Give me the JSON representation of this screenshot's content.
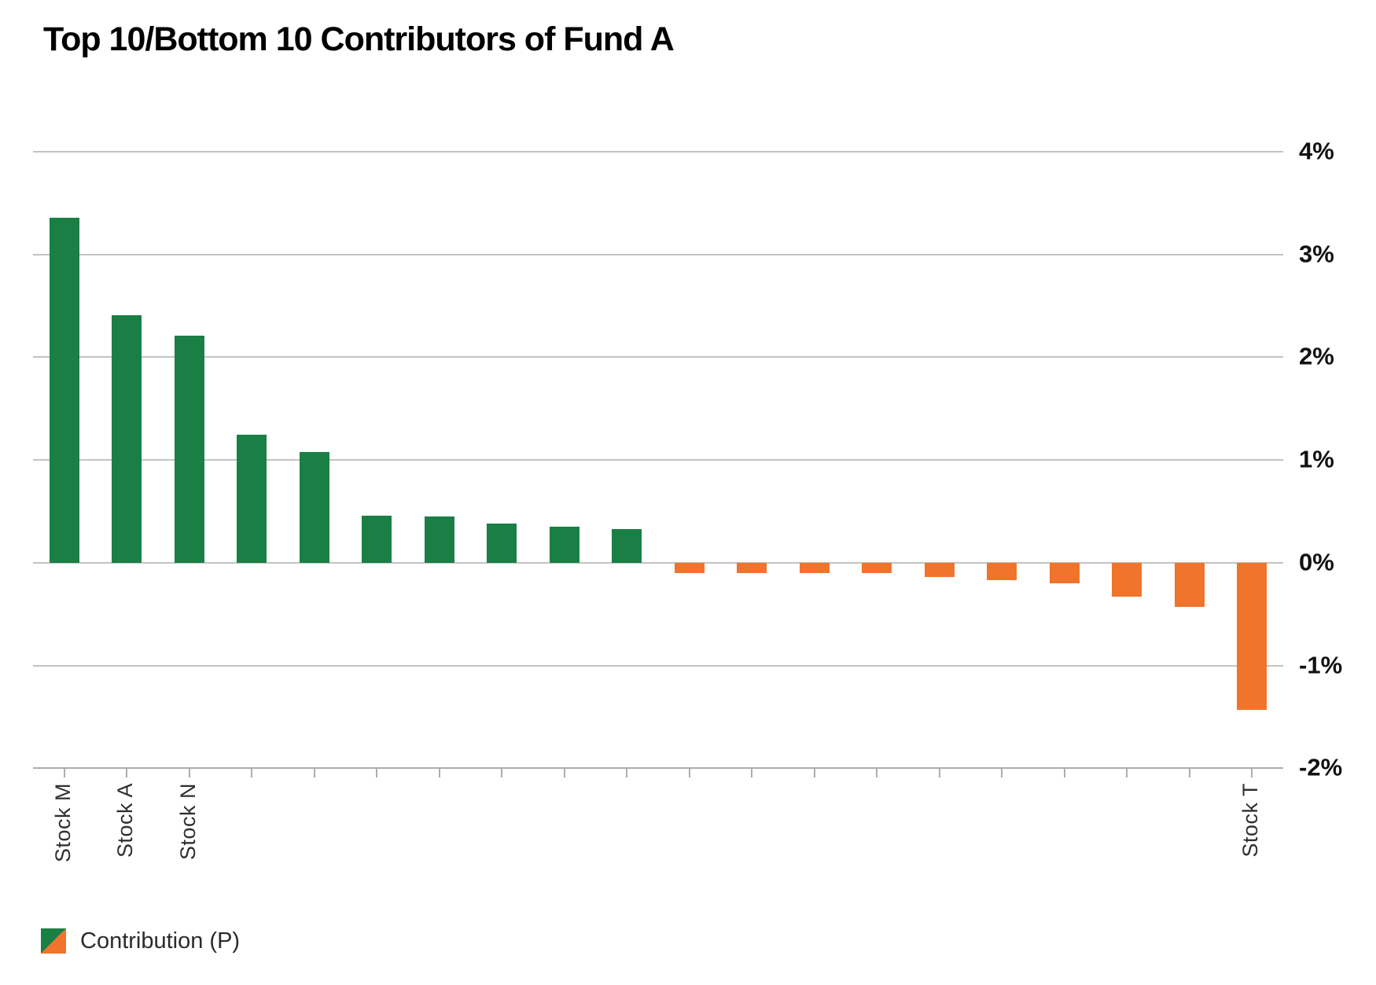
{
  "header": {
    "title": "Top 10/Bottom 10 Contributors of Fund A"
  },
  "legend": {
    "label": "Contribution (P)"
  },
  "colors": {
    "positive": "#1A7F45",
    "negative": "#F0742C",
    "gridline": "#C3C3C3",
    "axis_line": "#ADADAD",
    "tick": "#ADADAD",
    "title_text": "#000000",
    "ytick_text": "#111111",
    "xtick_text": "#303030",
    "legend_text": "#2B2B2B"
  },
  "chart_data": {
    "type": "bar",
    "title": "Top 10/Bottom 10 Contributors of Fund A",
    "xlabel": "",
    "ylabel": "",
    "ylim": [
      -2,
      4
    ],
    "yticks": [
      4,
      3,
      2,
      1,
      0,
      -1,
      -2
    ],
    "ytick_labels": [
      "4%",
      "3%",
      "2%",
      "1%",
      "0%",
      "-1%",
      "-2%"
    ],
    "grid": true,
    "legend_entries": [
      "Contribution (P)"
    ],
    "legend_position": "bottom-left",
    "series_name": "Contribution (P)",
    "categories": [
      "Stock M",
      "Stock A",
      "Stock N",
      "",
      "",
      "",
      "",
      "",
      "",
      "",
      "",
      "",
      "",
      "",
      "",
      "",
      "",
      "",
      "",
      "Stock T"
    ],
    "values": [
      3.36,
      2.41,
      2.21,
      1.25,
      1.08,
      0.46,
      0.45,
      0.38,
      0.35,
      0.33,
      -0.1,
      -0.1,
      -0.1,
      -0.1,
      -0.14,
      -0.17,
      -0.2,
      -0.33,
      -0.43,
      -1.43
    ]
  }
}
